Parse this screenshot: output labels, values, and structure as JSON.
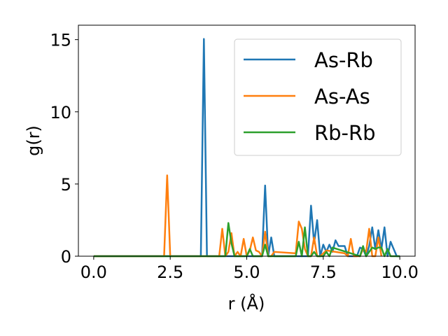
{
  "chart_data": {
    "type": "line",
    "title": "",
    "xlabel": "r (Å)",
    "ylabel": "g(r)",
    "xlim": [
      -0.5,
      10.5
    ],
    "ylim": [
      0,
      16
    ],
    "xticks": [
      0.0,
      2.5,
      5.0,
      7.5,
      10.0
    ],
    "xtick_labels": [
      "0.0",
      "2.5",
      "5.0",
      "7.5",
      "10.0"
    ],
    "yticks": [
      0,
      5,
      10,
      15
    ],
    "ytick_labels": [
      "0",
      "5",
      "10",
      "15"
    ],
    "grid": false,
    "legend_position": "top-right",
    "series": [
      {
        "name": "As-Rb",
        "color": "#1f77b4",
        "x": [
          0.0,
          3.5,
          3.6,
          3.7,
          5.5,
          5.6,
          5.7,
          5.8,
          5.9,
          6.0,
          7.0,
          7.1,
          7.2,
          7.3,
          7.4,
          7.5,
          7.6,
          7.7,
          7.8,
          7.9,
          8.0,
          8.1,
          8.2,
          8.3,
          8.6,
          8.7,
          8.8,
          8.9,
          9.0,
          9.1,
          9.2,
          9.3,
          9.4,
          9.5,
          9.6,
          9.7,
          9.8,
          9.9,
          10.0
        ],
        "y": [
          0,
          0,
          15.05,
          0,
          0,
          4.9,
          0,
          1.3,
          0,
          0,
          0,
          3.5,
          0.9,
          2.5,
          0,
          0.8,
          0.3,
          0.8,
          0.3,
          1.1,
          0.7,
          0.7,
          0.7,
          0,
          0,
          0.6,
          0.5,
          0,
          0.7,
          2.0,
          0.5,
          1.8,
          0.5,
          2.0,
          0,
          1.0,
          0.5,
          0,
          0
        ]
      },
      {
        "name": "As-As",
        "color": "#ff7f0e",
        "x": [
          0.0,
          2.3,
          2.4,
          2.5,
          4.1,
          4.2,
          4.3,
          4.4,
          4.5,
          4.6,
          4.7,
          4.8,
          4.9,
          5.0,
          5.1,
          5.2,
          5.3,
          5.4,
          5.5,
          5.6,
          5.7,
          5.8,
          5.9,
          6.6,
          6.7,
          6.8,
          6.9,
          7.0,
          7.1,
          7.2,
          7.3,
          7.4,
          7.5,
          7.6,
          8.2,
          8.3,
          8.4,
          8.5,
          8.6,
          8.7,
          8.8,
          8.9,
          9.0,
          9.1,
          9.2,
          9.3,
          9.4
        ],
        "y": [
          0,
          0,
          5.6,
          0,
          0,
          1.9,
          0,
          0.3,
          1.6,
          0,
          0.3,
          0,
          1.2,
          0,
          0.4,
          1.3,
          0.4,
          0.3,
          0,
          1.7,
          0,
          0,
          0.3,
          0.2,
          2.4,
          1.9,
          0.5,
          0,
          0,
          1.3,
          0,
          0,
          0.2,
          0.4,
          0.2,
          0,
          1.2,
          0,
          0,
          0,
          0.5,
          0.3,
          1.9,
          0,
          0,
          1.3,
          0
        ]
      },
      {
        "name": "Rb-Rb",
        "color": "#2ca02c",
        "x": [
          0.0,
          4.3,
          4.4,
          4.5,
          4.6,
          4.8,
          5.0,
          5.1,
          5.2,
          5.3,
          5.5,
          5.6,
          5.7,
          6.6,
          6.7,
          6.8,
          6.9,
          7.0,
          7.1,
          7.2,
          7.3,
          7.5,
          7.6,
          7.7,
          7.8,
          8.7,
          8.8,
          8.9,
          9.0,
          9.1,
          9.2,
          9.3,
          9.4,
          9.5,
          9.6,
          9.7,
          9.8,
          10.0
        ],
        "y": [
          0,
          0,
          2.3,
          0.9,
          0,
          0,
          0,
          0.5,
          0,
          0,
          0,
          0.8,
          0,
          0,
          1.0,
          0,
          2.0,
          0,
          0,
          0.3,
          0,
          0,
          0.3,
          0,
          0.6,
          0,
          0.7,
          0,
          0.3,
          0.6,
          0.5,
          0.6,
          0.6,
          0,
          0.5,
          0,
          0,
          0
        ]
      }
    ]
  }
}
